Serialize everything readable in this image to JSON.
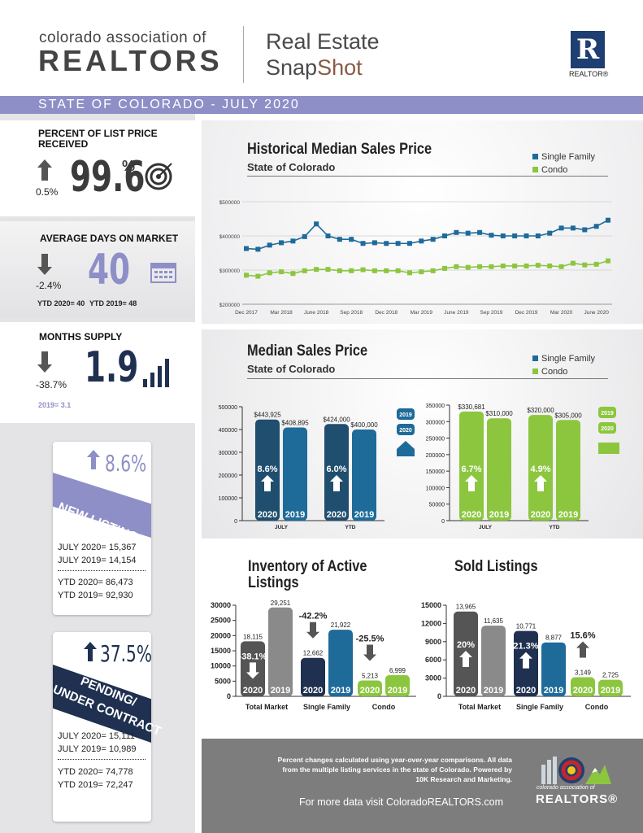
{
  "header": {
    "org_line1": "colorado association of",
    "org_line2": "REALTORS",
    "title_line1": "Real Estate",
    "title_line2a": "Snap",
    "title_line2b": "Shot",
    "realtor_mark": "R",
    "realtor_word": "REALTOR®",
    "banner": "STATE OF COLORADO - JULY 2020"
  },
  "colors": {
    "single_family": "#1e6b9a",
    "condo": "#8cc63f",
    "navy": "#1f3050",
    "banner": "#8e8fc7"
  },
  "metrics": {
    "pct_list": {
      "label": "PERCENT OF LIST PRICE RECEIVED",
      "value": "99.6",
      "unit": "%",
      "change": "0.5%",
      "icon": "target-icon"
    },
    "days": {
      "label": "AVERAGE DAYS ON MARKET",
      "value": "40",
      "change": "-2.4%",
      "ytd2020": "YTD 2020= 40",
      "ytd2019": "YTD 2019= 48",
      "icon": "calendar-icon"
    },
    "supply": {
      "label": "MONTHS SUPPLY",
      "value": "1.9",
      "change": "-38.7%",
      "prior": "2019= 3.1",
      "icon": "bar-chart-icon"
    },
    "new_listings": {
      "pct": "8.6%",
      "label": "NEW LISTINGS",
      "jul2020": "JULY 2020= 15,367",
      "jul2019": "JULY 2019= 14,154",
      "ytd2020": "YTD 2020= 86,473",
      "ytd2019": "YTD 2019= 92,930"
    },
    "pending": {
      "pct": "37.5%",
      "label1": "PENDING/",
      "label2": "UNDER CONTRACT",
      "jul2020": "JULY 2020= 15,111",
      "jul2019": "JULY 2019= 10,989",
      "ytd2020": "YTD 2020= 74,778",
      "ytd2019": "YTD 2019= 72,247"
    }
  },
  "panels": {
    "historical": {
      "title": "Historical Median Sales Price",
      "subtitle": "State of Colorado"
    },
    "median": {
      "title": "Median Sales Price",
      "subtitle": "State of Colorado"
    },
    "inventory": {
      "title_line1": "Inventory of Active",
      "title_line2": "Listings"
    },
    "sold": {
      "title": "Sold Listings"
    },
    "legend_sf": "Single Family",
    "legend_condo": "Condo"
  },
  "footer": {
    "note": "Percent changes calculated using year-over-year comparisons. All data from the multiple listing services in the state of Colorado. Powered by 10K Research and Marketing.",
    "link": "For more data visit ColoradoREALTORS.com",
    "org1": "colorado association of",
    "org2": "REALTORS®"
  },
  "chart_data": [
    {
      "type": "line",
      "title": "Historical Median Sales Price",
      "subtitle": "State of Colorado",
      "ylim": [
        200000,
        500000
      ],
      "yticks": [
        "$200000",
        "$300000",
        "$400000",
        "$500000"
      ],
      "xticks": [
        "Dec 2017",
        "Mar 2018",
        "June 2018",
        "Sep 2018",
        "Dec 2018",
        "Mar 2019",
        "June 2019",
        "Sep 2019",
        "Dec 2019",
        "Mar 2020",
        "June 2020"
      ],
      "n_points": 32,
      "series": [
        {
          "name": "Single Family",
          "color": "#1e6b9a",
          "values": [
            363000,
            361000,
            373000,
            380000,
            385000,
            398000,
            435000,
            400000,
            390000,
            390000,
            378000,
            380000,
            378000,
            378000,
            378000,
            385000,
            390000,
            400000,
            410000,
            408000,
            410000,
            402000,
            400000,
            400000,
            400000,
            400000,
            408000,
            423000,
            423000,
            418000,
            428000,
            446000
          ]
        },
        {
          "name": "Condo",
          "color": "#8cc63f",
          "values": [
            285000,
            282000,
            292000,
            295000,
            290000,
            298000,
            302000,
            302000,
            298000,
            298000,
            301000,
            298000,
            298000,
            298000,
            292000,
            295000,
            298000,
            305000,
            310000,
            308000,
            310000,
            310000,
            312000,
            312000,
            312000,
            314000,
            312000,
            310000,
            320000,
            315000,
            317000,
            327000
          ]
        }
      ]
    },
    {
      "type": "bar",
      "title": "Median Sales Price - Single Family",
      "ylim": [
        0,
        500000
      ],
      "yticks": [
        "0",
        "100000",
        "200000",
        "300000",
        "400000",
        "500000"
      ],
      "categories": [
        "JULY",
        "YTD"
      ],
      "series": [
        {
          "name": "2020",
          "values": [
            443925,
            424000
          ],
          "labels": [
            "$443,925",
            "$424,000"
          ]
        },
        {
          "name": "2019",
          "values": [
            408895,
            400000
          ],
          "labels": [
            "$408,895",
            "$400,000"
          ]
        }
      ],
      "changes": [
        "8.6%",
        "6.0%"
      ]
    },
    {
      "type": "bar",
      "title": "Median Sales Price - Condo",
      "ylim": [
        0,
        350000
      ],
      "yticks": [
        "0",
        "50000",
        "100000",
        "150000",
        "200000",
        "250000",
        "300000",
        "350000"
      ],
      "categories": [
        "JULY",
        "YTD"
      ],
      "series": [
        {
          "name": "2020",
          "values": [
            330681,
            320000
          ],
          "labels": [
            "$330,681",
            "$320,000"
          ]
        },
        {
          "name": "2019",
          "values": [
            310000,
            305000
          ],
          "labels": [
            "$310,000",
            "$305,000"
          ]
        }
      ],
      "changes": [
        "6.7%",
        "4.9%"
      ]
    },
    {
      "type": "bar",
      "title": "Inventory of Active Listings",
      "ylim": [
        0,
        30000
      ],
      "yticks": [
        "0",
        "5000",
        "10000",
        "15000",
        "20000",
        "25000",
        "30000"
      ],
      "categories": [
        "Total Market",
        "Single Family",
        "Condo"
      ],
      "series": [
        {
          "name": "2020",
          "values": [
            18115,
            12662,
            5213
          ],
          "labels": [
            "18,115",
            "12,662",
            "5,213"
          ]
        },
        {
          "name": "2019",
          "values": [
            29251,
            21922,
            6999
          ],
          "labels": [
            "29,251",
            "21,922",
            "6,999"
          ]
        }
      ],
      "changes": [
        "-38.1%",
        "-42.2%",
        "-25.5%"
      ]
    },
    {
      "type": "bar",
      "title": "Sold Listings",
      "ylim": [
        0,
        15000
      ],
      "yticks": [
        "0",
        "3000",
        "6000",
        "9000",
        "12000",
        "15000"
      ],
      "categories": [
        "Total Market",
        "Single Family",
        "Condo"
      ],
      "series": [
        {
          "name": "2020",
          "values": [
            13965,
            10771,
            3149
          ],
          "labels": [
            "13,965",
            "10,771",
            "3,149"
          ]
        },
        {
          "name": "2019",
          "values": [
            11635,
            8877,
            2725
          ],
          "labels": [
            "11,635",
            "8,877",
            "2,725"
          ]
        }
      ],
      "changes": [
        "20%",
        "21.3%",
        "15.6%"
      ]
    }
  ]
}
